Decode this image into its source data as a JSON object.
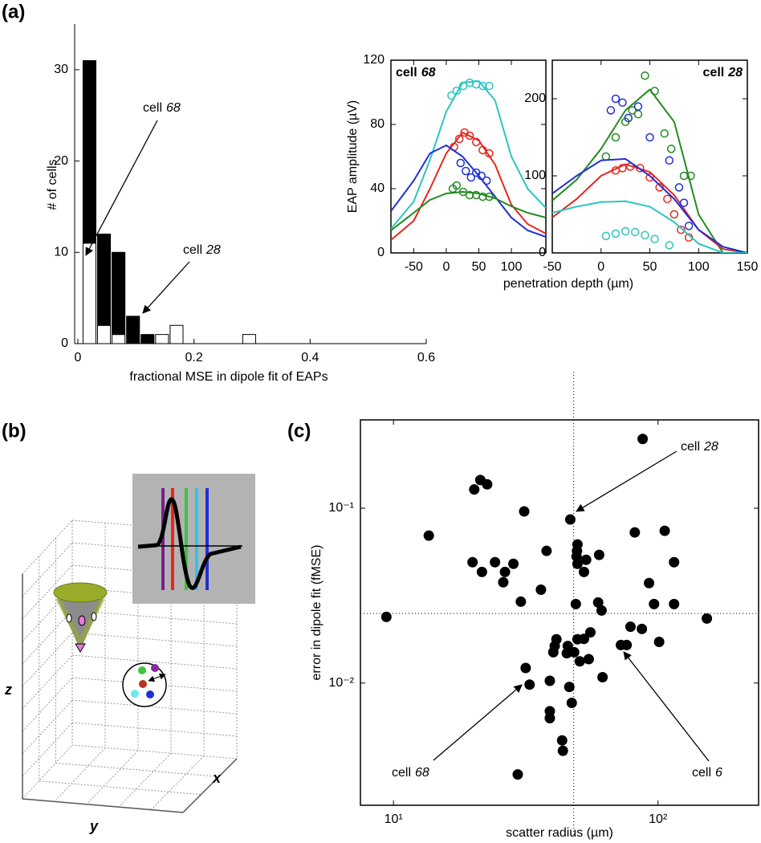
{
  "chart_data": [
    {
      "type": "histogram",
      "panel_label": "(a)",
      "xlabel": "fractional MSE in dipole fit of EAPs",
      "ylabel": "# of cells",
      "bins": [
        0.0075,
        0.0325,
        0.0575,
        0.0825,
        0.1075,
        0.1325,
        0.1575,
        0.1825,
        0.2075,
        0.2325,
        0.2575,
        0.2825,
        0.3075
      ],
      "series": [
        {
          "color": "#ffffff",
          "values": [
            11,
            2,
            1,
            0,
            0,
            1,
            2,
            0,
            0,
            0,
            0,
            1
          ]
        },
        {
          "color": "#000000",
          "values": [
            20,
            10,
            9,
            3,
            1,
            0,
            0,
            0,
            0,
            0,
            0,
            0
          ]
        }
      ],
      "xlim": [
        0,
        0.6
      ],
      "xticks": [
        0,
        0.2,
        0.4,
        0.6
      ],
      "ylim": [
        0,
        35
      ],
      "yticks": [
        0,
        10,
        20,
        30
      ],
      "annotations": [
        {
          "prefix": "cell",
          "id": "68"
        },
        {
          "prefix": "cell",
          "id": "28"
        }
      ]
    },
    {
      "type": "line",
      "title": {
        "prefix": "cell",
        "id": "68"
      },
      "xlabel": "penetration depth  (µm)",
      "ylabel": "EAP amplitude  (µV)",
      "x": [
        -85,
        -50,
        -25,
        0,
        25,
        50,
        75,
        100,
        125,
        153
      ],
      "series": [
        {
          "color": "#2ec4c4",
          "values": [
            15,
            32,
            58,
            88,
            106,
            107,
            95,
            60,
            40,
            28
          ],
          "points": {
            "x": [
              8,
              16,
              26,
              36,
              46,
              56,
              66
            ],
            "values": [
              98,
              101,
              104,
              106,
              105,
              104,
              104
            ]
          }
        },
        {
          "color": "#e8251f",
          "values": [
            8,
            20,
            40,
            62,
            75,
            70,
            55,
            30,
            18,
            12
          ],
          "points": {
            "x": [
              12,
              20,
              28,
              36,
              46,
              56,
              66
            ],
            "values": [
              66,
              71,
              75,
              73,
              69,
              64,
              62
            ]
          }
        },
        {
          "color": "#1f2fd6",
          "values": [
            26,
            45,
            62,
            67,
            60,
            48,
            35,
            22,
            14,
            10
          ],
          "points": {
            "x": [
              22,
              30,
              38,
              46,
              54,
              62
            ],
            "values": [
              56,
              51,
              47,
              50,
              48,
              45
            ]
          }
        },
        {
          "color": "#238a23",
          "values": [
            14,
            25,
            33,
            37,
            38,
            37,
            34,
            29,
            25,
            22
          ],
          "points": {
            "x": [
              10,
              16,
              26,
              36,
              46,
              56,
              66
            ],
            "values": [
              40,
              42,
              38,
              36,
              36,
              35,
              35
            ]
          }
        }
      ],
      "xlim": [
        -85,
        153
      ],
      "xticks": [
        -50,
        0,
        50,
        100
      ],
      "ylim": [
        0,
        120
      ],
      "yticks": [
        0,
        40,
        80,
        120
      ]
    },
    {
      "type": "line",
      "title": {
        "prefix": "cell",
        "id": "28"
      },
      "x": [
        -50,
        -25,
        0,
        25,
        50,
        75,
        100,
        125,
        150
      ],
      "series": [
        {
          "color": "#238a23",
          "values": [
            68,
            95,
            135,
            185,
            212,
            170,
            50,
            0,
            0
          ],
          "points": {
            "x": [
              5,
              15,
              25,
              32,
              38,
              45,
              55,
              65,
              72,
              85,
              92
            ],
            "values": [
              125,
              150,
              170,
              185,
              180,
              230,
              210,
              155,
              135,
              100,
              100
            ]
          }
        },
        {
          "color": "#e8251f",
          "values": [
            46,
            70,
            100,
            115,
            105,
            75,
            30,
            5,
            0
          ],
          "points": {
            "x": [
              15,
              22,
              30,
              40,
              50,
              60,
              68,
              75,
              82,
              90
            ],
            "values": [
              107,
              110,
              112,
              110,
              98,
              85,
              70,
              50,
              30,
              20
            ]
          }
        },
        {
          "color": "#1f2fd6",
          "values": [
            77,
            100,
            120,
            122,
            100,
            70,
            30,
            8,
            0
          ],
          "points": {
            "x": [
              10,
              15,
              22,
              28,
              38,
              50,
              70,
              80,
              85,
              90
            ],
            "values": [
              185,
              200,
              195,
              175,
              190,
              150,
              120,
              85,
              65,
              35
            ]
          }
        },
        {
          "color": "#2ec4c4",
          "values": [
            52,
            60,
            66,
            67,
            60,
            40,
            12,
            0,
            0
          ],
          "points": {
            "x": [
              5,
              15,
              25,
              35,
              45,
              55,
              70
            ],
            "values": [
              22,
              25,
              28,
              27,
              23,
              18,
              10
            ]
          }
        }
      ],
      "xlim": [
        -50,
        150
      ],
      "xticks": [
        -50,
        0,
        50,
        100,
        150
      ],
      "ylim": [
        0,
        250
      ],
      "yticks": [
        0,
        100,
        200
      ]
    },
    {
      "type": "scatter",
      "panel_label": "(c)",
      "xlabel": "scatter radius (µm)",
      "ylabel": "error in dipole fit (fMSE)",
      "xscale": "log",
      "yscale": "log",
      "color": "#000000",
      "x": [
        87.5,
        21.3,
        22.6,
        20.2,
        13.6,
        31.2,
        46.6,
        49.6,
        49.4,
        49.2,
        53.5,
        59.9,
        81.7,
        106,
        37.9,
        19.9,
        24.2,
        28.4,
        21.6,
        26.4,
        26.0,
        49.6,
        52.5,
        115,
        92.5,
        36.1,
        30.3,
        48.9,
        59.4,
        61.2,
        9.4,
        153,
        115,
        96.6,
        78.7,
        86.9,
        72.4,
        76.1,
        101,
        41.3,
        49.6,
        52.5,
        55.5,
        40.7,
        40.2,
        45.6,
        50.6,
        48.2,
        54.7,
        45.2,
        61.7,
        31.6,
        32.7,
        39,
        46.2,
        39,
        39,
        47.2,
        43.7,
        29.5,
        43.4
      ],
      "values": [
        0.249,
        0.145,
        0.137,
        0.128,
        0.0697,
        0.0959,
        0.0862,
        0.0621,
        0.057,
        0.053,
        0.0507,
        0.0541,
        0.0727,
        0.0743,
        0.057,
        0.0491,
        0.0491,
        0.0481,
        0.0432,
        0.0432,
        0.0377,
        0.0481,
        0.0432,
        0.0491,
        0.0373,
        0.0342,
        0.0292,
        0.0283,
        0.0289,
        0.026,
        0.0239,
        0.0234,
        0.0283,
        0.0283,
        0.021,
        0.0204,
        0.0165,
        0.0165,
        0.0172,
        0.0178,
        0.0178,
        0.0179,
        0.0195,
        0.0163,
        0.015,
        0.0163,
        0.0133,
        0.015,
        0.0137,
        0.0148,
        0.0108,
        0.0122,
        0.0098,
        0.0103,
        0.0095,
        0.0069,
        0.0063,
        0.0077,
        0.0041,
        0.003,
        0.0047
      ],
      "ref_lines": {
        "x": 48,
        "y": 0.025
      },
      "xlim": [
        7.5,
        240
      ],
      "xticks": [
        {
          "value": 10,
          "label": "10¹"
        },
        {
          "value": 100,
          "label": "10²"
        }
      ],
      "ylim": [
        0.002,
        0.32
      ],
      "yticks": [
        {
          "value": 0.01,
          "label": "10⁻²"
        },
        {
          "value": 0.1,
          "label": "10⁻¹"
        }
      ],
      "annotations": [
        {
          "prefix": "cell",
          "id": "28"
        },
        {
          "prefix": "cell",
          "id": "68"
        },
        {
          "prefix": "cell",
          "id": "6"
        }
      ]
    }
  ],
  "diagram": {
    "panel_label": "(b)",
    "axis_labels": [
      "z",
      "y",
      "x"
    ]
  }
}
